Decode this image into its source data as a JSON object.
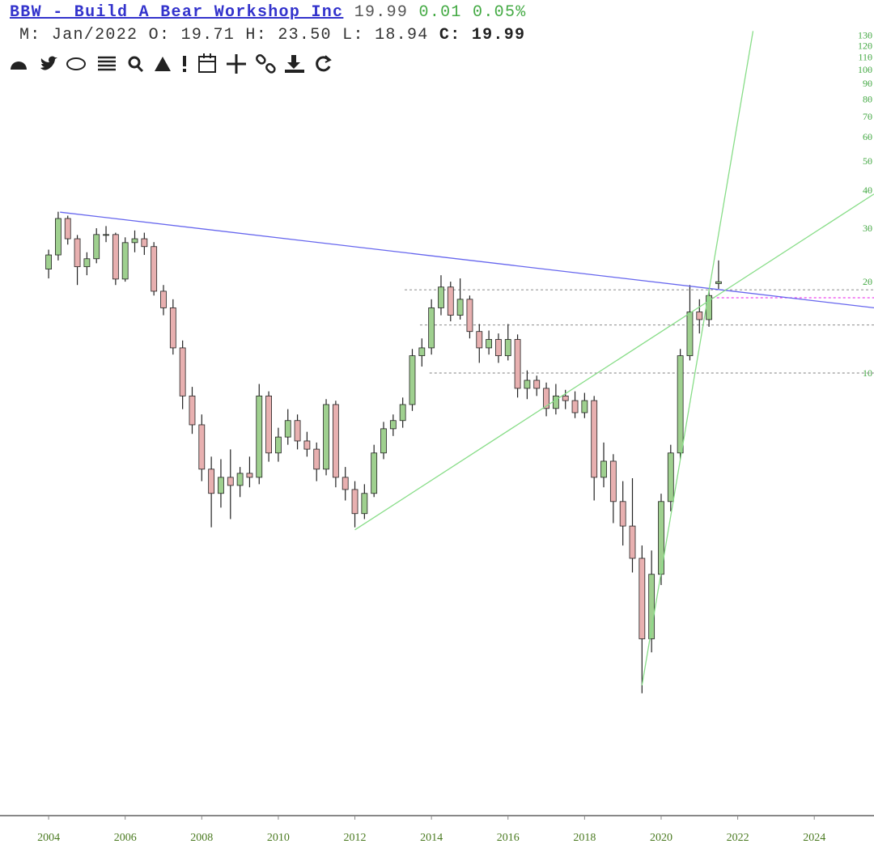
{
  "header": {
    "title": "BBW - Build A Bear Workshop Inc",
    "last": "19.99",
    "change": "0.01",
    "change_pct": "0.05%",
    "period": "M: Jan/2022",
    "open_label": "O:",
    "open": "19.71",
    "high_label": "H:",
    "high": "23.50",
    "low_label": "L:",
    "low": "18.94",
    "close_label": "C:",
    "close": "19.99"
  },
  "chart_data": {
    "type": "candlestick",
    "log_scale": true,
    "up_color": "#9fd08f",
    "down_color": "#e8b0b0",
    "wick_color": "#222222",
    "x": [
      2004.0,
      2004.25,
      2004.5,
      2004.75,
      2005.0,
      2005.25,
      2005.5,
      2005.75,
      2006.0,
      2006.25,
      2006.5,
      2006.75,
      2007.0,
      2007.25,
      2007.5,
      2007.75,
      2008.0,
      2008.25,
      2008.5,
      2008.75,
      2009.0,
      2009.25,
      2009.5,
      2009.75,
      2010.0,
      2010.25,
      2010.5,
      2010.75,
      2011.0,
      2011.25,
      2011.5,
      2011.75,
      2012.0,
      2012.25,
      2012.5,
      2012.75,
      2013.0,
      2013.25,
      2013.5,
      2013.75,
      2014.0,
      2014.25,
      2014.5,
      2014.75,
      2015.0,
      2015.25,
      2015.5,
      2015.75,
      2016.0,
      2016.25,
      2016.5,
      2016.75,
      2017.0,
      2017.25,
      2017.5,
      2017.75,
      2018.0,
      2018.25,
      2018.5,
      2018.75,
      2019.0,
      2019.25,
      2019.5,
      2019.75,
      2020.0,
      2020.25,
      2020.5,
      2020.75,
      2021.0,
      2021.25,
      2021.5
    ],
    "open": [
      22,
      24.5,
      32.3,
      27.7,
      22.4,
      23.8,
      28.6,
      28.6,
      20.4,
      26.9,
      27.7,
      26.1,
      18.6,
      16.4,
      12.1,
      8.4,
      6.75,
      4.82,
      4.01,
      4.53,
      4.26,
      4.67,
      4.53,
      8.4,
      5.45,
      6.15,
      6.97,
      5.97,
      5.61,
      4.82,
      7.87,
      4.53,
      4.13,
      3.44,
      4.01,
      5.45,
      6.55,
      6.97,
      7.87,
      11.4,
      12.1,
      16.4,
      19.2,
      15.5,
      17.5,
      13.7,
      12.1,
      12.9,
      11.4,
      12.9,
      8.9,
      9.46,
      8.9,
      7.64,
      8.4,
      8.11,
      7.4,
      8.11,
      4.53,
      5.12,
      3.77,
      3.13,
      2.45,
      1.33,
      2.17,
      3.77,
      5.45,
      11.4,
      15.9,
      15.0,
      19.71
    ],
    "high": [
      25.5,
      34,
      33,
      28.5,
      25,
      30,
      30.5,
      29,
      28,
      29.5,
      29,
      27,
      19.5,
      17.5,
      12.8,
      9,
      7.3,
      5.3,
      5.2,
      5.6,
      4.9,
      5.3,
      9.2,
      8.7,
      6.6,
      7.6,
      7.3,
      6.4,
      5.9,
      8.2,
      8.1,
      4.9,
      4.4,
      4.3,
      5.8,
      6.9,
      7.3,
      8.3,
      12,
      13,
      17.5,
      21,
      20,
      20.5,
      18,
      14.5,
      13.8,
      13.5,
      14.5,
      13.4,
      10.2,
      9.8,
      9.3,
      9.2,
      8.8,
      8.7,
      8.6,
      8.4,
      5.9,
      5.4,
      4.4,
      4.5,
      2.7,
      2.6,
      4,
      5.8,
      12,
      19.5,
      17.5,
      19,
      23.5
    ],
    "low": [
      20.5,
      23.5,
      26.5,
      19.5,
      21,
      23,
      27,
      19.5,
      20,
      25,
      24.5,
      18,
      15.5,
      11.5,
      7.6,
      6.3,
      4.4,
      3.1,
      3.6,
      3.3,
      3.9,
      4.2,
      4.3,
      5.1,
      5.1,
      5.8,
      5.6,
      5.3,
      4.4,
      4.6,
      4.2,
      3.8,
      3.1,
      3.3,
      3.9,
      5.2,
      6.2,
      6.6,
      7.5,
      10.5,
      11.5,
      15.5,
      14.8,
      15,
      13,
      10.8,
      11.5,
      10.8,
      11,
      8.3,
      8.2,
      8.4,
      7.2,
      7.3,
      7.6,
      7.1,
      7.1,
      3.8,
      4.2,
      3.2,
      2.7,
      2.2,
      0.88,
      1.2,
      2.0,
      3.5,
      5.2,
      11,
      13.5,
      14.2,
      18.94
    ],
    "close": [
      24.5,
      32.3,
      27.7,
      22.4,
      23.8,
      28.6,
      28.6,
      20.4,
      26.9,
      27.7,
      26.1,
      18.6,
      16.4,
      12.1,
      8.4,
      6.75,
      4.82,
      4.01,
      4.53,
      4.26,
      4.67,
      4.53,
      8.4,
      5.45,
      6.15,
      6.97,
      5.97,
      5.61,
      4.82,
      7.87,
      4.53,
      4.13,
      3.44,
      4.01,
      5.45,
      6.55,
      6.97,
      7.87,
      11.4,
      12.1,
      16.4,
      19.2,
      15.5,
      17.5,
      13.7,
      12.1,
      12.9,
      11.4,
      12.9,
      8.9,
      9.46,
      8.9,
      7.64,
      8.4,
      8.11,
      7.4,
      8.11,
      4.53,
      5.12,
      3.77,
      3.13,
      2.45,
      1.33,
      2.17,
      3.77,
      5.45,
      11.4,
      15.9,
      15.0,
      18.0,
      19.99
    ],
    "xlim": [
      2002.73,
      2025.56
    ],
    "ylim": [
      0.354,
      136.8
    ],
    "xticks": [
      2004,
      2006,
      2008,
      2010,
      2012,
      2014,
      2016,
      2018,
      2020,
      2022,
      2024
    ],
    "yticks": [
      10,
      20,
      30,
      40,
      50,
      60,
      70,
      80,
      90,
      100,
      110,
      120,
      130
    ],
    "trendlines": [
      {
        "color": "#6666ee",
        "x": [
          2004.3,
          2025.56
        ],
        "y": [
          33.9,
          16.4
        ]
      },
      {
        "color": "#88dd88",
        "x": [
          2012.0,
          2025.56
        ],
        "y": [
          3.04,
          38.9
        ]
      },
      {
        "color": "#88dd88",
        "x": [
          2019.5,
          2022.4
        ],
        "y": [
          0.935,
          134
        ]
      }
    ],
    "hlines": [
      {
        "y": 18.8,
        "from": 2013.3,
        "color": "#999999"
      },
      {
        "y": 14.4,
        "from": 2013.7,
        "color": "#999999"
      },
      {
        "y": 10,
        "from": 2013.95,
        "color": "#999999"
      },
      {
        "y": 17.7,
        "from": 2021.2,
        "color": "#ee44ee"
      }
    ]
  }
}
